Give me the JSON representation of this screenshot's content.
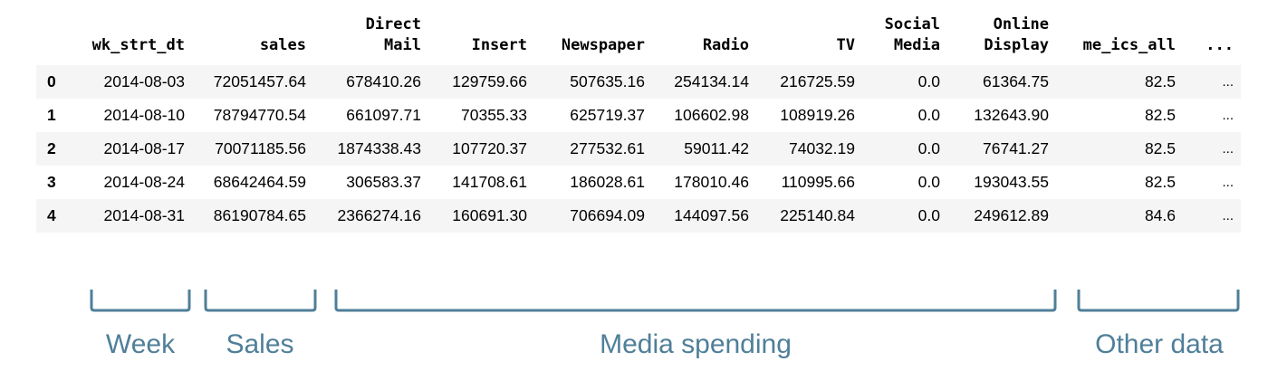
{
  "table": {
    "index_header": "",
    "columns": [
      "wk_strt_dt",
      "sales",
      "Direct\nMail",
      "Insert",
      "Newspaper",
      "Radio",
      "TV",
      "Social\nMedia",
      "Online\nDisplay",
      "me_ics_all",
      "..."
    ],
    "rows": [
      {
        "index": "0",
        "cells": [
          "2014-08-03",
          "72051457.64",
          "678410.26",
          "129759.66",
          "507635.16",
          "254134.14",
          "216725.59",
          "0.0",
          "61364.75",
          "82.5",
          "..."
        ]
      },
      {
        "index": "1",
        "cells": [
          "2014-08-10",
          "78794770.54",
          "661097.71",
          "70355.33",
          "625719.37",
          "106602.98",
          "108919.26",
          "0.0",
          "132643.90",
          "82.5",
          "..."
        ]
      },
      {
        "index": "2",
        "cells": [
          "2014-08-17",
          "70071185.56",
          "1874338.43",
          "107720.37",
          "277532.61",
          "59011.42",
          "74032.19",
          "0.0",
          "76741.27",
          "82.5",
          "..."
        ]
      },
      {
        "index": "3",
        "cells": [
          "2014-08-24",
          "68642464.59",
          "306583.37",
          "141708.61",
          "186028.61",
          "178010.46",
          "110995.66",
          "0.0",
          "193043.55",
          "82.5",
          "..."
        ]
      },
      {
        "index": "4",
        "cells": [
          "2014-08-31",
          "86190784.65",
          "2366274.16",
          "160691.30",
          "706694.09",
          "144097.56",
          "225140.84",
          "0.0",
          "249612.89",
          "84.6",
          "..."
        ]
      }
    ]
  },
  "groups": [
    {
      "label": "Week"
    },
    {
      "label": "Sales"
    },
    {
      "label": "Media spending"
    },
    {
      "label": "Other data"
    }
  ],
  "colors": {
    "annotation": "#4f7f99",
    "row_stripe": "#f5f5f5"
  }
}
